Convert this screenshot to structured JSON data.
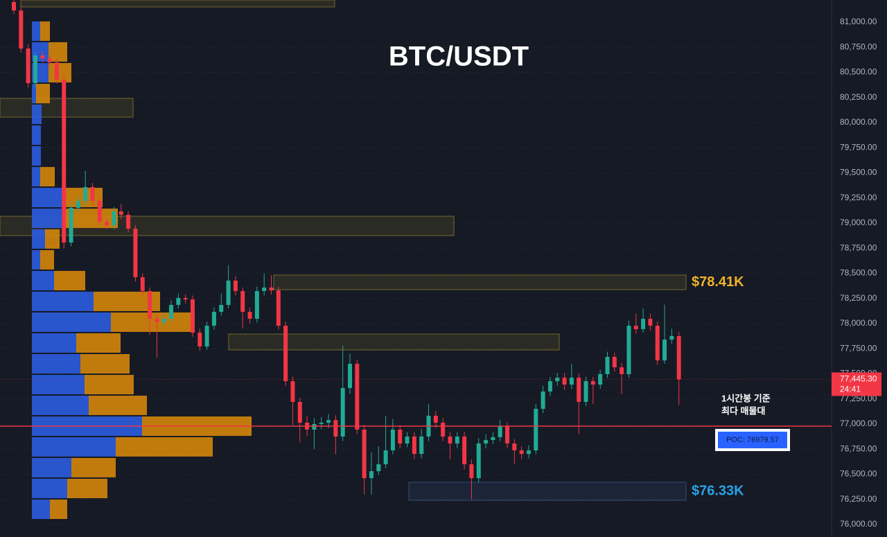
{
  "chart_data": {
    "type": "candlestick",
    "title": "BTC/USDT",
    "ylim": [
      75876,
      81221
    ],
    "yticks": [
      {
        "value": 76000,
        "label": "76,000.00"
      },
      {
        "value": 76250,
        "label": "76,250.00"
      },
      {
        "value": 76500,
        "label": "76,500.00"
      },
      {
        "value": 76750,
        "label": "76,750.00"
      },
      {
        "value": 77000,
        "label": "77,000.00"
      },
      {
        "value": 77250,
        "label": "77,250.00"
      },
      {
        "value": 77500,
        "label": "77,500.00"
      },
      {
        "value": 77750,
        "label": "77,750.00"
      },
      {
        "value": 78000,
        "label": "78,000.00"
      },
      {
        "value": 78250,
        "label": "78,250.00"
      },
      {
        "value": 78500,
        "label": "78,500.00"
      },
      {
        "value": 78750,
        "label": "78,750.00"
      },
      {
        "value": 79000,
        "label": "79,000.00"
      },
      {
        "value": 79250,
        "label": "79,250.00"
      },
      {
        "value": 79500,
        "label": "79,500.00"
      },
      {
        "value": 79750,
        "label": "79,750.00"
      },
      {
        "value": 80000,
        "label": "80,000.00"
      },
      {
        "value": 80250,
        "label": "80,250.00"
      },
      {
        "value": 80500,
        "label": "80,500.00"
      },
      {
        "value": 80750,
        "label": "80,750.00"
      },
      {
        "value": 81000,
        "label": "81,000.00"
      }
    ],
    "grid": true,
    "up_color": "#22ab94",
    "down_color": "#f23645",
    "ohlc": [
      [
        81200,
        81230,
        81080,
        81117
      ],
      [
        81117,
        81150,
        80700,
        80738
      ],
      [
        80738,
        80780,
        80350,
        80393
      ],
      [
        80393,
        80700,
        80350,
        80669
      ],
      [
        80669,
        80710,
        80600,
        80640
      ],
      [
        80640,
        80680,
        80560,
        80600
      ],
      [
        80600,
        80640,
        80390,
        80428
      ],
      [
        80428,
        80460,
        78750,
        78807
      ],
      [
        78807,
        79190,
        78770,
        79152
      ],
      [
        79152,
        79260,
        79110,
        79221
      ],
      [
        79221,
        79520,
        79180,
        79359
      ],
      [
        79359,
        79400,
        79180,
        79221
      ],
      [
        79221,
        79260,
        78980,
        79014
      ],
      [
        79014,
        79050,
        78940,
        78979
      ],
      [
        78979,
        79160,
        78940,
        79117
      ],
      [
        79117,
        79190,
        79040,
        79083
      ],
      [
        79083,
        79120,
        78910,
        78945
      ],
      [
        78945,
        78980,
        78420,
        78462
      ],
      [
        78462,
        78500,
        78280,
        78324
      ],
      [
        78324,
        78360,
        77890,
        78048
      ],
      [
        78048,
        78090,
        77660,
        78014
      ],
      [
        78014,
        78090,
        77970,
        78048
      ],
      [
        78048,
        78230,
        78010,
        78186
      ],
      [
        78186,
        78300,
        78150,
        78255
      ],
      [
        78255,
        78290,
        78200,
        78241
      ],
      [
        78241,
        78280,
        77870,
        77910
      ],
      [
        77910,
        77950,
        77730,
        77772
      ],
      [
        77772,
        78020,
        77740,
        77979
      ],
      [
        77979,
        78160,
        77940,
        78117
      ],
      [
        78117,
        78300,
        78080,
        78186
      ],
      [
        78186,
        78580,
        78150,
        78428
      ],
      [
        78428,
        78470,
        78280,
        78324
      ],
      [
        78324,
        78360,
        77950,
        78117
      ],
      [
        78117,
        78160,
        78000,
        78048
      ],
      [
        78048,
        78370,
        78010,
        78324
      ],
      [
        78324,
        78500,
        78280,
        78359
      ],
      [
        78359,
        78480,
        78290,
        78330
      ],
      [
        78330,
        78370,
        77940,
        77979
      ],
      [
        77979,
        78020,
        77380,
        77427
      ],
      [
        77427,
        77470,
        76990,
        77221
      ],
      [
        77221,
        77260,
        76820,
        77014
      ],
      [
        77014,
        77080,
        76880,
        76945
      ],
      [
        76945,
        77060,
        76750,
        77000
      ],
      [
        77000,
        77070,
        76950,
        77014
      ],
      [
        77014,
        77100,
        76960,
        77040
      ],
      [
        77040,
        77090,
        76700,
        76876
      ],
      [
        76876,
        77780,
        76830,
        77359
      ],
      [
        77359,
        77700,
        77300,
        77600
      ],
      [
        77600,
        77640,
        76900,
        76945
      ],
      [
        76945,
        76990,
        76300,
        76462
      ],
      [
        76462,
        76720,
        76300,
        76531
      ],
      [
        76531,
        76780,
        76490,
        76600
      ],
      [
        76600,
        77080,
        76560,
        76738
      ],
      [
        76738,
        77050,
        76700,
        76945
      ],
      [
        76945,
        76990,
        76760,
        76807
      ],
      [
        76807,
        76920,
        76770,
        76876
      ],
      [
        76876,
        76920,
        76650,
        76703
      ],
      [
        76703,
        76950,
        76660,
        76876
      ],
      [
        76876,
        77200,
        76830,
        77083
      ],
      [
        77083,
        77130,
        76960,
        77014
      ],
      [
        77014,
        77060,
        76830,
        76876
      ],
      [
        76876,
        76920,
        76650,
        76807
      ],
      [
        76807,
        76920,
        76760,
        76876
      ],
      [
        76876,
        76920,
        76550,
        76600
      ],
      [
        76600,
        76650,
        76250,
        76462
      ],
      [
        76462,
        76860,
        76420,
        76807
      ],
      [
        76807,
        76900,
        76760,
        76841
      ],
      [
        76841,
        76920,
        76800,
        76870
      ],
      [
        76870,
        77040,
        76830,
        76979
      ],
      [
        76979,
        77020,
        76760,
        76807
      ],
      [
        76807,
        76850,
        76600,
        76738
      ],
      [
        76738,
        76780,
        76650,
        76703
      ],
      [
        76703,
        76790,
        76660,
        76738
      ],
      [
        76738,
        77200,
        76700,
        77152
      ],
      [
        77152,
        77380,
        77110,
        77324
      ],
      [
        77324,
        77470,
        77280,
        77427
      ],
      [
        77427,
        77510,
        77380,
        77462
      ],
      [
        77462,
        77510,
        77340,
        77393
      ],
      [
        77393,
        77600,
        77350,
        77462
      ],
      [
        77462,
        77500,
        76900,
        77221
      ],
      [
        77221,
        77470,
        77180,
        77427
      ],
      [
        77427,
        77470,
        77200,
        77393
      ],
      [
        77393,
        77540,
        77350,
        77497
      ],
      [
        77497,
        77720,
        77460,
        77669
      ],
      [
        77669,
        77710,
        77520,
        77565
      ],
      [
        77565,
        77610,
        77300,
        77497
      ],
      [
        77497,
        78030,
        77460,
        77979
      ],
      [
        77979,
        78100,
        77900,
        77945
      ],
      [
        77945,
        78150,
        77910,
        78048
      ],
      [
        78048,
        78100,
        77930,
        77979
      ],
      [
        77979,
        78020,
        77590,
        77634
      ],
      [
        77634,
        78190,
        77600,
        77841
      ],
      [
        77841,
        77950,
        77800,
        77876
      ],
      [
        77876,
        77920,
        77190,
        77445
      ]
    ],
    "volume_profile": {
      "buy_color": "#2b5ce0",
      "sell_color": "#d4860b",
      "price": [
        76152,
        76359,
        76566,
        76773,
        76979,
        77186,
        77393,
        77600,
        77807,
        78014,
        78221,
        78428,
        78635,
        78842,
        79048,
        79255,
        79462,
        79669,
        79876,
        80083,
        80290,
        80497,
        80704,
        80911
      ],
      "buy": [
        26,
        51,
        57,
        121,
        159,
        82,
        76,
        70,
        64,
        114,
        89,
        32,
        12,
        19,
        49,
        46,
        12,
        13,
        13,
        14,
        6,
        24,
        24,
        12
      ],
      "sell": [
        25,
        58,
        64,
        140,
        158,
        84,
        71,
        71,
        64,
        121,
        96,
        45,
        20,
        21,
        75,
        56,
        21,
        0,
        0,
        0,
        20,
        33,
        27,
        14
      ]
    },
    "zones": [
      {
        "top": 81221,
        "bottom": 81152
      },
      {
        "top": 80241,
        "bottom": 80055
      },
      {
        "top": 79069,
        "bottom": 78876
      },
      {
        "top": 78483,
        "bottom": 78338,
        "label": "$78.41K"
      },
      {
        "top": 77896,
        "bottom": 77738
      },
      {
        "top": 76421,
        "bottom": 76241,
        "label": "$76.33K"
      }
    ],
    "last_price": {
      "value": 77445.3,
      "label": "77,445.30",
      "countdown": "24:41"
    },
    "poc": {
      "value": 76979.57,
      "label": "POC: 76979.57",
      "color": "#f23645"
    },
    "annotation": [
      "1시간봉 기준",
      "최다 매물대"
    ]
  }
}
